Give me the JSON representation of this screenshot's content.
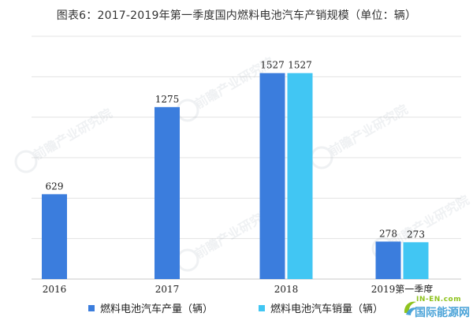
{
  "chart_data": {
    "type": "bar",
    "title": "图表6：2017-2019年第一季度国内燃料电池汽车产销规模（单位：辆）",
    "categories": [
      "2016",
      "2017",
      "2018",
      "2019第一季度"
    ],
    "series": [
      {
        "name": "燃料电池汽车产量（辆）",
        "color": "#3b7ddd",
        "values": [
          629,
          1275,
          1527,
          278
        ]
      },
      {
        "name": "燃料电池汽车销量（辆）",
        "color": "#41c6f3",
        "values": [
          null,
          null,
          1527,
          273
        ]
      }
    ],
    "ylim": [
      0,
      1800
    ],
    "grid": true,
    "legend": "bottom"
  },
  "watermark_text": "前瞻产业研究院",
  "logo": {
    "en": "IN-EN.com",
    "cn": "国际能源网"
  }
}
